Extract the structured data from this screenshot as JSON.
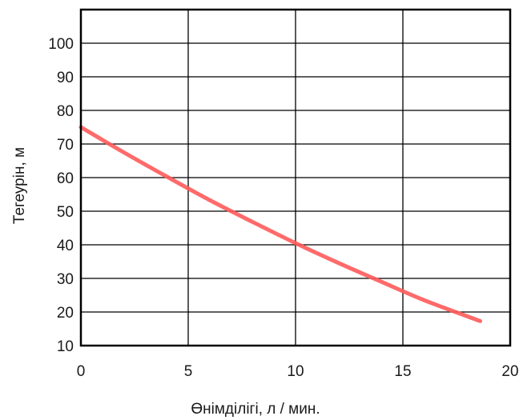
{
  "chart_data": {
    "type": "line",
    "xlabel": "Өнімділігі, л / мин.",
    "ylabel": "Тегеурін, м",
    "xlim": [
      0,
      20
    ],
    "ylim": [
      10,
      110
    ],
    "x_ticks": [
      0,
      5,
      10,
      15,
      20
    ],
    "y_ticks": [
      10,
      20,
      30,
      40,
      50,
      60,
      70,
      80,
      90,
      100
    ],
    "grid": true,
    "series": [
      {
        "color": "#ff5a5a",
        "x": [
          0,
          2,
          4,
          6,
          8,
          10,
          12,
          14,
          16,
          18.6
        ],
        "y": [
          75,
          67.5,
          60.3,
          53.3,
          46.8,
          40.5,
          34.6,
          29,
          23.5,
          17.3
        ]
      }
    ]
  }
}
